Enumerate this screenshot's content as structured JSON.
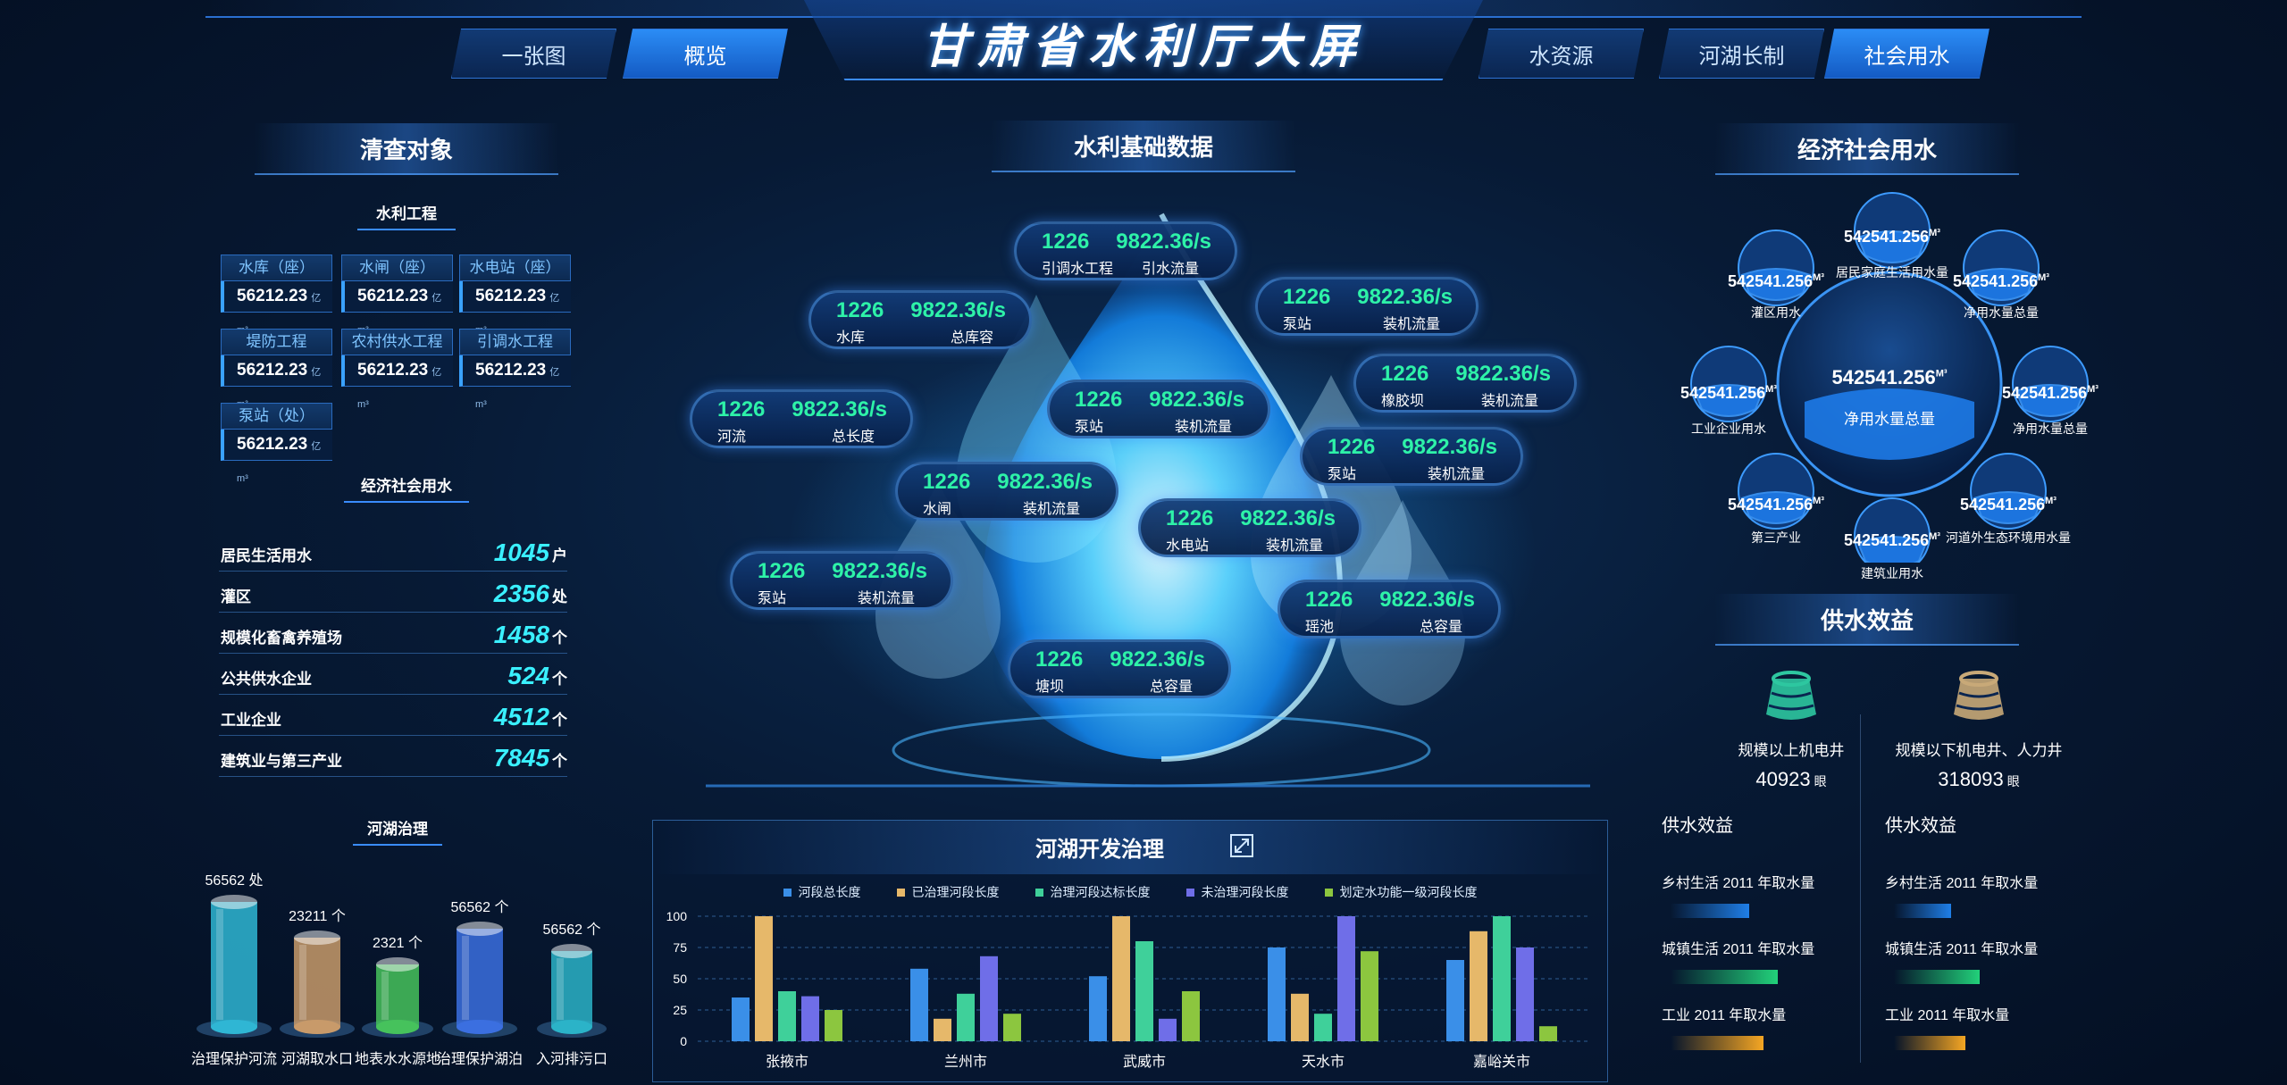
{
  "header": {
    "title": "甘肃省水利厅大屏",
    "nav_left": [
      "一张图",
      "概览"
    ],
    "nav_right": [
      "水资源",
      "河湖长制",
      "社会用水"
    ],
    "active": "概览"
  },
  "left": {
    "panel_title": "清查对象",
    "section_water": "水利工程",
    "cards": [
      {
        "label": "水库（座）",
        "value": "56212.23",
        "unit": "亿m³"
      },
      {
        "label": "水闸（座）",
        "value": "56212.23",
        "unit": "亿m³"
      },
      {
        "label": "水电站（座）",
        "value": "56212.23",
        "unit": "亿m³"
      },
      {
        "label": "堤防工程",
        "value": "56212.23",
        "unit": "亿m³"
      },
      {
        "label": "农村供水工程",
        "value": "56212.23",
        "unit": "亿m³"
      },
      {
        "label": "引调水工程",
        "value": "56212.23",
        "unit": "亿m³"
      },
      {
        "label": "泵站（处）",
        "value": "56212.23",
        "unit": "亿m³"
      }
    ],
    "section_social": "经济社会用水",
    "stats": [
      {
        "label": "居民生活用水",
        "value": "1045",
        "unit": "户"
      },
      {
        "label": "灌区",
        "value": "2356",
        "unit": "处"
      },
      {
        "label": "规模化畜禽养殖场",
        "value": "1458",
        "unit": "个"
      },
      {
        "label": "公共供水企业",
        "value": "524",
        "unit": "个"
      },
      {
        "label": "工业企业",
        "value": "4512",
        "unit": "个"
      },
      {
        "label": "建筑业与第三产业",
        "value": "7845",
        "unit": "个"
      }
    ],
    "section_river": "河湖治理",
    "cylinders": [
      {
        "label": "治理保护河流",
        "value": "56562 处",
        "color": "#2fb6d4"
      },
      {
        "label": "河湖取水口",
        "value": "23211 个",
        "color": "#c89a6a"
      },
      {
        "label": "地表水水源地",
        "value": "2321 个",
        "color": "#46c25c"
      },
      {
        "label": "治理保护湖泊",
        "value": "56562 个",
        "color": "#3b6fe0"
      },
      {
        "label": "入河排污口",
        "value": "56562 个",
        "color": "#2bb3c8"
      }
    ]
  },
  "center": {
    "panel_title": "水利基础数据",
    "pills": [
      {
        "n1": "1226",
        "n2": "9822.36/s",
        "l1": "引调水工程",
        "l2": "引水流量"
      },
      {
        "n1": "1226",
        "n2": "9822.36/s",
        "l1": "水库",
        "l2": "总库容"
      },
      {
        "n1": "1226",
        "n2": "9822.36/s",
        "l1": "泵站",
        "l2": "装机流量"
      },
      {
        "n1": "1226",
        "n2": "9822.36/s",
        "l1": "河流",
        "l2": "总长度"
      },
      {
        "n1": "1226",
        "n2": "9822.36/s",
        "l1": "泵站",
        "l2": "装机流量"
      },
      {
        "n1": "1226",
        "n2": "9822.36/s",
        "l1": "橡胶坝",
        "l2": "装机流量"
      },
      {
        "n1": "1226",
        "n2": "9822.36/s",
        "l1": "水闸",
        "l2": "装机流量"
      },
      {
        "n1": "1226",
        "n2": "9822.36/s",
        "l1": "泵站",
        "l2": "装机流量"
      },
      {
        "n1": "1226",
        "n2": "9822.36/s",
        "l1": "水电站",
        "l2": "装机流量"
      },
      {
        "n1": "1226",
        "n2": "9822.36/s",
        "l1": "泵站",
        "l2": "装机流量"
      },
      {
        "n1": "1226",
        "n2": "9822.36/s",
        "l1": "瑶池",
        "l2": "总容量"
      },
      {
        "n1": "1226",
        "n2": "9822.36/s",
        "l1": "塘坝",
        "l2": "总容量"
      }
    ]
  },
  "chart_data": {
    "type": "bar",
    "title": "河湖开发治理",
    "categories": [
      "张掖市",
      "兰州市",
      "武威市",
      "天水市",
      "嘉峪关市"
    ],
    "ylim": [
      0,
      100
    ],
    "yticks": [
      "0",
      "25",
      "50",
      "75",
      "100"
    ],
    "legend_position": "top",
    "grid": true,
    "series": [
      {
        "name": "河段总长度",
        "color": "#3a8fe8",
        "values": [
          35,
          58,
          52,
          75,
          65
        ]
      },
      {
        "name": "已治理河段长度",
        "color": "#e6b86a",
        "values": [
          105,
          18,
          105,
          38,
          88
        ]
      },
      {
        "name": "治理河段达标长度",
        "color": "#3fd09a",
        "values": [
          40,
          38,
          80,
          22,
          105
        ]
      },
      {
        "name": "未治理河段长度",
        "color": "#6f6ee8",
        "values": [
          36,
          68,
          18,
          108,
          75
        ]
      },
      {
        "name": "划定水功能一级河段长度",
        "color": "#8cc63f",
        "values": [
          25,
          22,
          40,
          72,
          12
        ]
      }
    ]
  },
  "right": {
    "panel_title": "经济社会用水",
    "center_orb": {
      "value": "542541.256",
      "unit": "M³",
      "label": "净用水量总量"
    },
    "orbs": [
      {
        "value": "542541.256",
        "unit": "M³",
        "label": "居民家庭生活用水量"
      },
      {
        "value": "542541.256",
        "unit": "M³",
        "label": "净用水量总量"
      },
      {
        "value": "542541.256",
        "unit": "M³",
        "label": "净用水量总量"
      },
      {
        "value": "542541.256",
        "unit": "M³",
        "label": "河道外生态环境用水量"
      },
      {
        "value": "542541.256",
        "unit": "M³",
        "label": "建筑业用水"
      },
      {
        "value": "542541.256",
        "unit": "M³",
        "label": "第三产业"
      },
      {
        "value": "542541.256",
        "unit": "M³",
        "label": "工业企业用水"
      },
      {
        "value": "542541.256",
        "unit": "M³",
        "label": "灌区用水"
      }
    ],
    "supply_title": "供水效益",
    "wells": [
      {
        "label": "规模以上机电井",
        "value": "40923",
        "unit": "眼",
        "color": "#2ec7a0"
      },
      {
        "label": "规模以下机电井、人力井",
        "value": "318093",
        "unit": "眼",
        "color": "#c8a978"
      }
    ],
    "benefit_title": "供水效益",
    "benefits_left": [
      {
        "label": "乡村生活 2011 年取水量",
        "level": 0.55,
        "color": "#1f7fe8"
      },
      {
        "label": "城镇生活 2011 年取水量",
        "level": 0.75,
        "color": "#22d17a"
      },
      {
        "label": "工业 2011 年取水量",
        "level": 0.65,
        "color": "#f5a623"
      }
    ],
    "benefits_right": [
      {
        "label": "乡村生活 2011 年取水量",
        "level": 0.4,
        "color": "#1f7fe8"
      },
      {
        "label": "城镇生活 2011 年取水量",
        "level": 0.6,
        "color": "#22d17a"
      },
      {
        "label": "工业 2011 年取水量",
        "level": 0.5,
        "color": "#f5a623"
      }
    ]
  }
}
